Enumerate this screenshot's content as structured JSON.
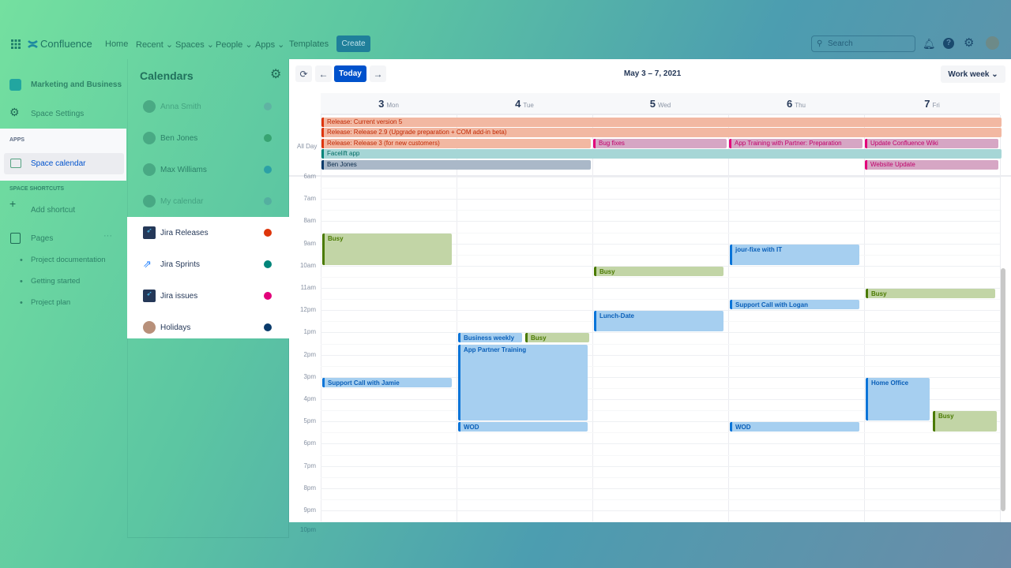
{
  "nav": {
    "app_name": "Confluence",
    "links": [
      "Home",
      "Recent",
      "Spaces",
      "People",
      "Apps",
      "Templates"
    ],
    "dropdowns": [
      false,
      true,
      true,
      true,
      true,
      false
    ],
    "create_label": "Create",
    "search_placeholder": "Search"
  },
  "left_sidebar": {
    "space_name": "Marketing and Business",
    "space_settings": "Space Settings",
    "apps_heading": "APPS",
    "space_calendar": "Space calendar",
    "shortcuts_heading": "SPACE SHORTCUTS",
    "add_shortcut": "Add shortcut",
    "pages": "Pages",
    "page_links": [
      "Project documentation",
      "Getting started",
      "Project plan"
    ]
  },
  "calendars": {
    "title": "Calendars",
    "items": [
      {
        "name": "Anna Smith",
        "color": "#5fa3a3",
        "icon": "avatar",
        "dim": true
      },
      {
        "name": "Ben Jones",
        "color": "#1e8a52",
        "icon": "avatar",
        "dim": true
      },
      {
        "name": "Max Williams",
        "color": "#0a86a8",
        "icon": "avatar",
        "dim": true
      },
      {
        "name": "My calendar",
        "color": "#4f9f9f",
        "icon": "avatar",
        "dim": true
      },
      {
        "name": "Jira Releases",
        "color": "#de350b",
        "icon": "jira-rocket-icon",
        "dim": false
      },
      {
        "name": "Jira Sprints",
        "color": "#00857a",
        "icon": "jira-sprints-icon",
        "dim": false
      },
      {
        "name": "Jira issues",
        "color": "#e2007a",
        "icon": "jira-rocket-icon",
        "dim": false
      },
      {
        "name": "Holidays",
        "color": "#0a3b6b",
        "icon": "avatar",
        "dim": false
      }
    ]
  },
  "toolbar": {
    "today_label": "Today",
    "date_range": "May 3 – 7, 2021",
    "view_label": "Work week"
  },
  "days": [
    {
      "num": "3",
      "name": "Mon"
    },
    {
      "num": "4",
      "name": "Tue"
    },
    {
      "num": "5",
      "name": "Wed"
    },
    {
      "num": "6",
      "name": "Thu"
    },
    {
      "num": "7",
      "name": "Fri"
    }
  ],
  "all_day_label": "All Day",
  "hours": [
    "6am",
    "7am",
    "8am",
    "9am",
    "10am",
    "11am",
    "12pm",
    "1pm",
    "2pm",
    "3pm",
    "4pm",
    "5pm",
    "6pm",
    "7pm",
    "8pm",
    "9pm",
    "10pm"
  ],
  "event_styles": {
    "release": {
      "bg": "#f2b8a2",
      "border": "#de350b",
      "text": "#bf2600"
    },
    "issue": {
      "bg": "#d6a6c4",
      "border": "#e2007a",
      "text": "#c0006a"
    },
    "sprint": {
      "bg": "#a6d6d6",
      "border": "#00857a",
      "text": "#006b63"
    },
    "holiday": {
      "bg": "#aab8c8",
      "border": "#0a3b6b",
      "text": "#0a2a4b"
    },
    "busy": {
      "bg": "#c2d5a6",
      "border": "#4a7a00",
      "text": "#4a7a00"
    },
    "meeting": {
      "bg": "#a6cff0",
      "border": "#0a74d8",
      "text": "#0a5fb8"
    }
  },
  "all_day_events": [
    {
      "title": "Release: Current version 5",
      "row": 0,
      "start_day": 0,
      "end_day": 4,
      "style": "release"
    },
    {
      "title": "Release: Release 2.9 (Upgrade preparation + COM add-in beta)",
      "row": 1,
      "start_day": 0,
      "end_day": 4,
      "style": "release"
    },
    {
      "title": "Release: Release 3 (for new customers)",
      "row": 2,
      "start_day": 0,
      "end_day": 1,
      "style": "release"
    },
    {
      "title": "Bug fixes",
      "row": 2,
      "start_day": 2,
      "end_day": 2,
      "style": "issue"
    },
    {
      "title": "App Training with Partner: Preparation",
      "row": 2,
      "start_day": 3,
      "end_day": 3,
      "style": "issue"
    },
    {
      "title": "Update Confluence Wiki",
      "row": 2,
      "start_day": 4,
      "end_day": 4,
      "style": "issue"
    },
    {
      "title": "Facelift app",
      "row": 3,
      "start_day": 0,
      "end_day": 4,
      "style": "sprint"
    },
    {
      "title": "Ben Jones",
      "row": 4,
      "start_day": 0,
      "end_day": 1,
      "style": "holiday"
    },
    {
      "title": "Website Update",
      "row": 4,
      "start_day": 4,
      "end_day": 4,
      "style": "issue"
    }
  ],
  "events": [
    {
      "title": "Busy",
      "day": 0,
      "start": 8.5,
      "end": 10,
      "style": "busy",
      "col": 0,
      "cols": 1
    },
    {
      "title": "Support Call with Jamie",
      "day": 0,
      "start": 15,
      "end": 15.5,
      "style": "meeting",
      "col": 0,
      "cols": 1
    },
    {
      "title": "Business weekly",
      "day": 1,
      "start": 13,
      "end": 13.5,
      "style": "meeting",
      "col": 0,
      "cols": 2
    },
    {
      "title": "Busy",
      "day": 1,
      "start": 13,
      "end": 13.5,
      "style": "busy",
      "col": 1,
      "cols": 2
    },
    {
      "title": "App Partner Training",
      "day": 1,
      "start": 13.5,
      "end": 17,
      "style": "meeting",
      "col": 0,
      "cols": 1
    },
    {
      "title": "WOD",
      "day": 1,
      "start": 17,
      "end": 17.5,
      "style": "meeting",
      "col": 0,
      "cols": 1
    },
    {
      "title": "Busy",
      "day": 2,
      "start": 10,
      "end": 10.5,
      "style": "busy",
      "col": 0,
      "cols": 1
    },
    {
      "title": "Lunch-Date",
      "day": 2,
      "start": 12,
      "end": 13,
      "style": "meeting",
      "col": 0,
      "cols": 1
    },
    {
      "title": "jour-fixe with IT",
      "day": 3,
      "start": 9,
      "end": 10,
      "style": "meeting",
      "col": 0,
      "cols": 1
    },
    {
      "title": "Support Call with Logan",
      "day": 3,
      "start": 11.5,
      "end": 12,
      "style": "meeting",
      "col": 0,
      "cols": 1
    },
    {
      "title": "WOD",
      "day": 3,
      "start": 17,
      "end": 17.5,
      "style": "meeting",
      "col": 0,
      "cols": 1
    },
    {
      "title": "Busy",
      "day": 4,
      "start": 11,
      "end": 11.5,
      "style": "busy",
      "col": 0,
      "cols": 1
    },
    {
      "title": "Home Office",
      "day": 4,
      "start": 15,
      "end": 17,
      "style": "meeting",
      "col": 0,
      "cols": 2
    },
    {
      "title": "Busy",
      "day": 4,
      "start": 16.5,
      "end": 17.5,
      "style": "busy",
      "col": 1,
      "cols": 2
    }
  ]
}
